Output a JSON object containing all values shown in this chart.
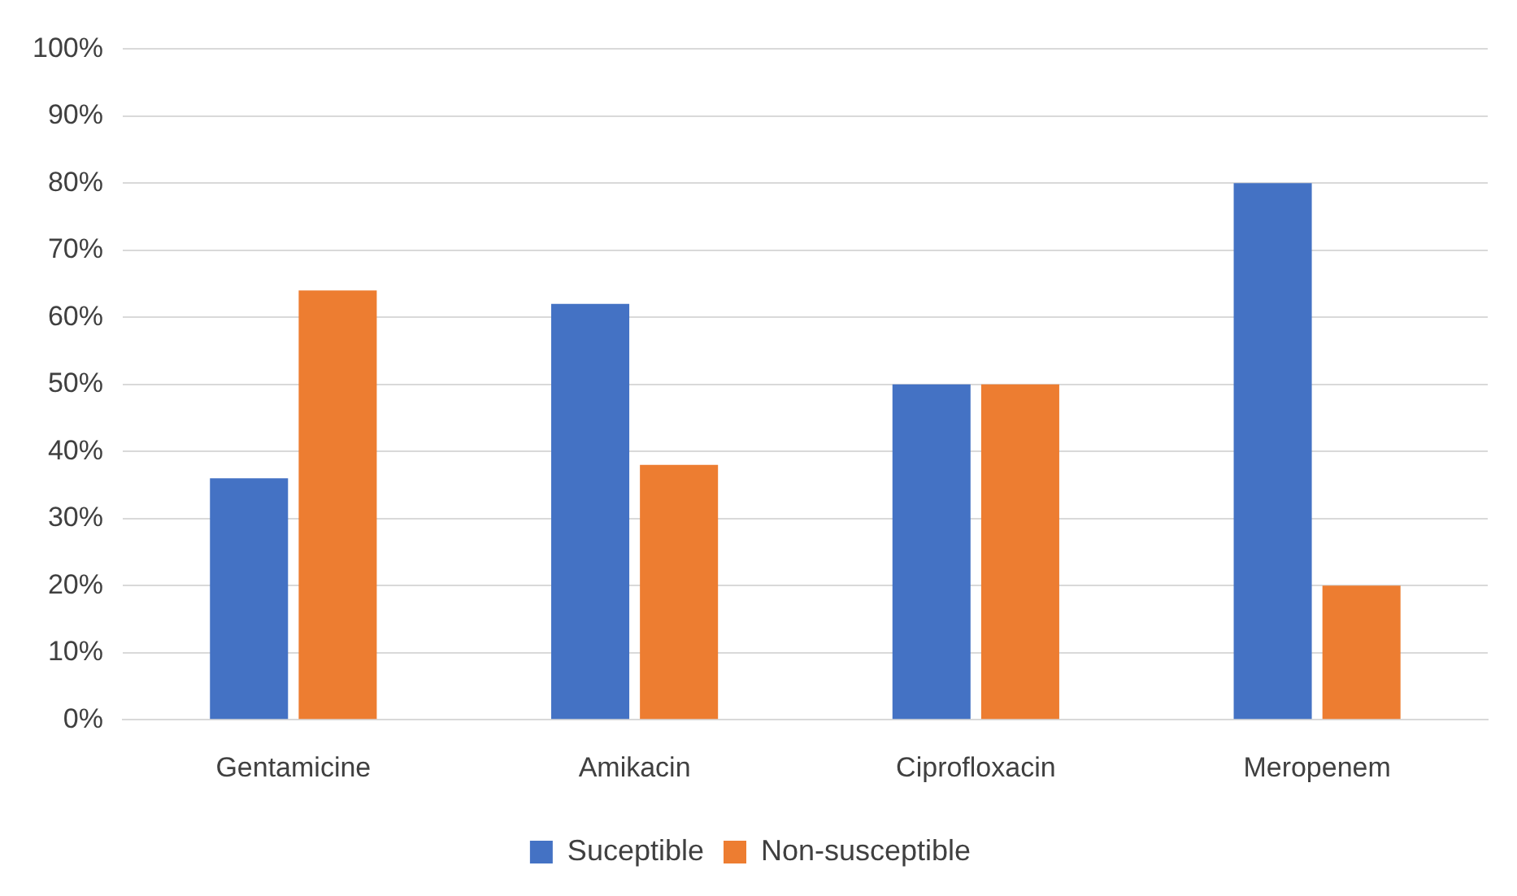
{
  "chart_data": {
    "type": "bar",
    "categories": [
      "Gentamicine",
      "Amikacin",
      "Ciprofloxacin",
      "Meropenem"
    ],
    "series": [
      {
        "name": "Suceptible",
        "color": "#4472c4",
        "values": [
          36,
          62,
          50,
          80
        ]
      },
      {
        "name": "Non-susceptible",
        "color": "#ed7d31",
        "values": [
          64,
          38,
          50,
          20
        ]
      }
    ],
    "ylim": [
      0,
      100
    ],
    "yticks": [
      {
        "value": 0,
        "label": "0%"
      },
      {
        "value": 10,
        "label": "10%"
      },
      {
        "value": 20,
        "label": "20%"
      },
      {
        "value": 30,
        "label": "30%"
      },
      {
        "value": 40,
        "label": "40%"
      },
      {
        "value": 50,
        "label": "50%"
      },
      {
        "value": 60,
        "label": "60%"
      },
      {
        "value": 70,
        "label": "70%"
      },
      {
        "value": 80,
        "label": "80%"
      },
      {
        "value": 90,
        "label": "90%"
      },
      {
        "value": 100,
        "label": "100%"
      }
    ],
    "grid": "y",
    "legend": "bottom"
  }
}
